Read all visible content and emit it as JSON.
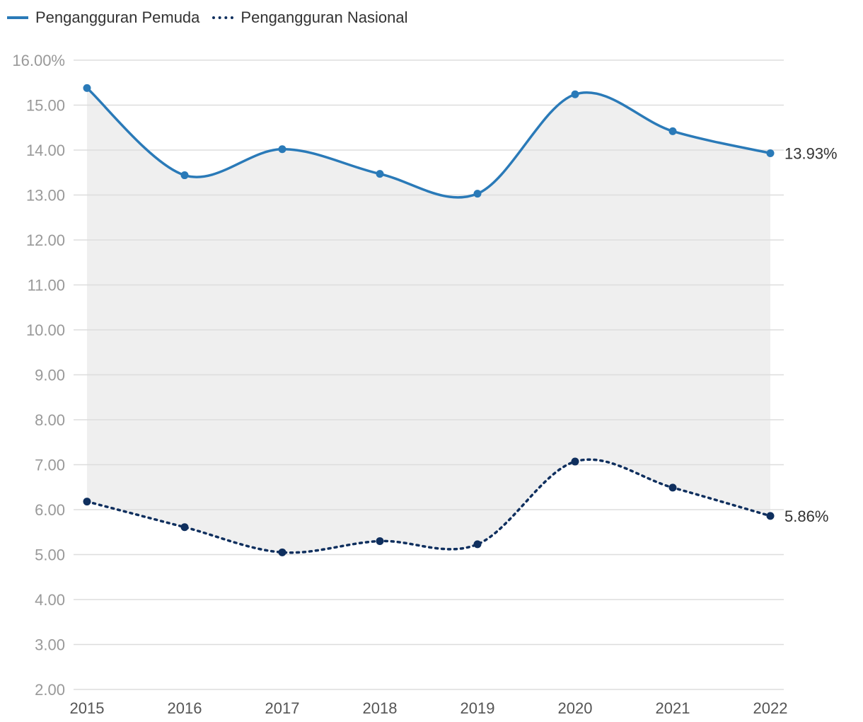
{
  "chart_data": {
    "type": "line",
    "title": "",
    "xlabel": "",
    "ylabel": "",
    "categories": [
      "2015",
      "2016",
      "2017",
      "2018",
      "2019",
      "2020",
      "2021",
      "2022"
    ],
    "y_ticks": [
      "16.00%",
      "15.00",
      "14.00",
      "13.00",
      "12.00",
      "11.00",
      "10.00",
      "9.00",
      "8.00",
      "7.00",
      "6.00",
      "5.00",
      "4.00",
      "3.00",
      "2.00"
    ],
    "ylim": [
      2,
      16
    ],
    "grid": true,
    "legend_position": "top-left",
    "series": [
      {
        "name": "Pengangguran Pemuda",
        "values": [
          15.38,
          13.44,
          14.02,
          13.47,
          13.03,
          15.24,
          14.42,
          13.93
        ],
        "color": "#2a7ab8",
        "style": "solid",
        "end_label": "13.93%"
      },
      {
        "name": "Pengangguran Nasional",
        "values": [
          6.18,
          5.61,
          5.05,
          5.3,
          5.23,
          7.07,
          6.49,
          5.86
        ],
        "color": "#0f2f5e",
        "style": "dotted",
        "end_label": "5.86%"
      }
    ],
    "fill_between": {
      "color": "#efefef"
    },
    "colors": {
      "grid": "#dddddd",
      "axis_text": "#999999",
      "label_text": "#333333"
    }
  }
}
